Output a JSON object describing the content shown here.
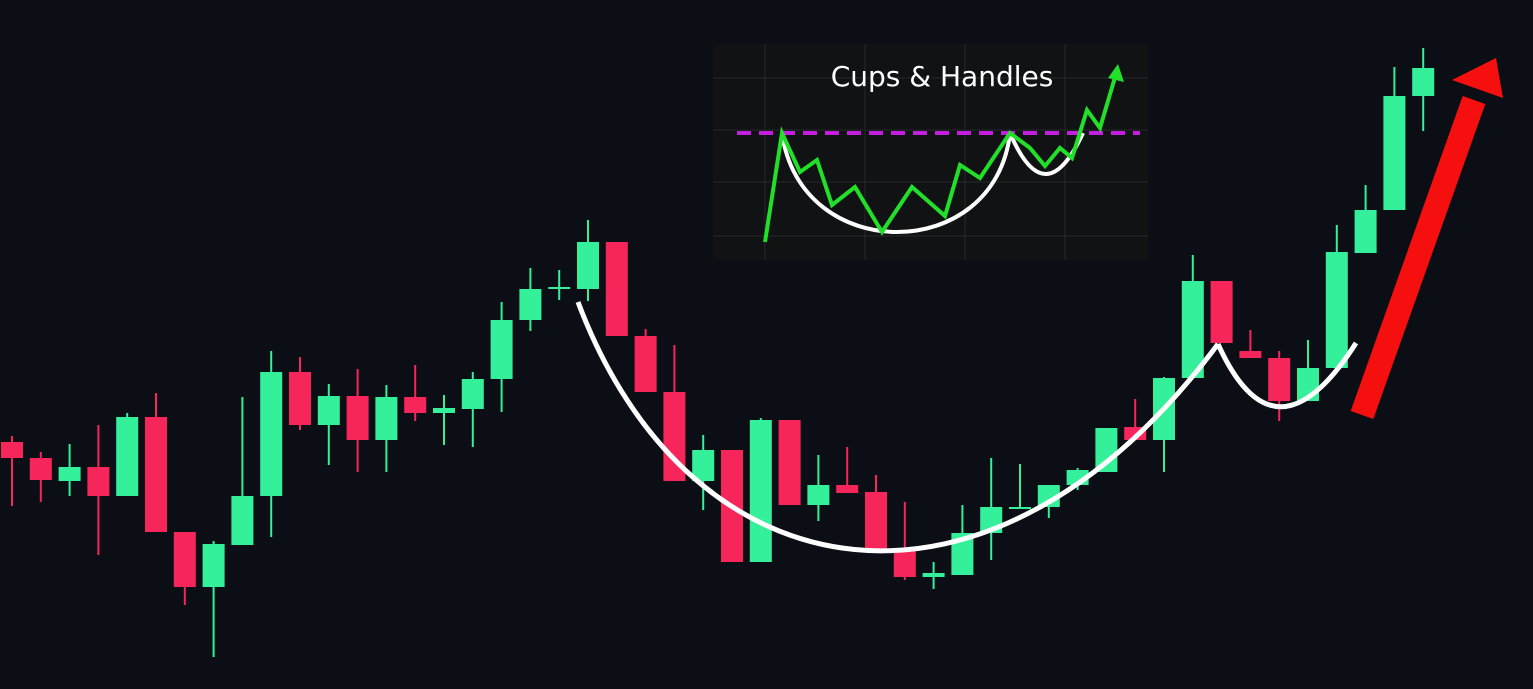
{
  "chart_data": {
    "type": "candlestick",
    "title": "Cups & Handles",
    "up_color": "#35f09a",
    "down_color": "#f7265a",
    "ylim": [
      0,
      689
    ],
    "open": [
      247,
      231,
      208,
      222,
      193,
      272,
      157,
      102,
      144,
      193,
      317,
      264,
      293,
      249,
      292,
      276,
      280,
      310,
      369,
      400,
      400,
      447,
      353,
      297,
      208,
      239,
      127,
      269,
      184,
      204,
      197,
      138,
      112,
      114,
      156,
      180,
      182,
      204,
      217,
      262,
      249,
      311,
      408,
      338,
      331,
      288,
      321,
      436,
      479,
      593
    ],
    "high": [
      253,
      237,
      245,
      264,
      276,
      296,
      157,
      148,
      292,
      338,
      332,
      305,
      320,
      304,
      324,
      294,
      317,
      387,
      421,
      419,
      469,
      447,
      360,
      344,
      254,
      239,
      271,
      269,
      234,
      242,
      214,
      187,
      127,
      184,
      231,
      225,
      204,
      221,
      261,
      290,
      312,
      434,
      408,
      359,
      338,
      349,
      464,
      504,
      622,
      641
    ],
    "low": [
      183,
      187,
      193,
      134,
      193,
      157,
      84,
      32,
      144,
      152,
      259,
      224,
      217,
      217,
      268,
      244,
      242,
      277,
      358,
      389,
      388,
      353,
      297,
      208,
      179,
      127,
      127,
      184,
      168,
      196,
      139,
      109,
      100,
      114,
      129,
      180,
      171,
      199,
      217,
      249,
      217,
      311,
      346,
      331,
      268,
      288,
      321,
      436,
      479,
      558
    ],
    "close": [
      231,
      209,
      222,
      193,
      272,
      157,
      102,
      145,
      193,
      317,
      264,
      293,
      249,
      292,
      276,
      281,
      310,
      369,
      400,
      402,
      447,
      353,
      297,
      208,
      239,
      127,
      269,
      184,
      204,
      196,
      139,
      112,
      116,
      156,
      182,
      182,
      204,
      219,
      261,
      249,
      311,
      408,
      346,
      331,
      288,
      321,
      437,
      479,
      593,
      621
    ]
  }
}
